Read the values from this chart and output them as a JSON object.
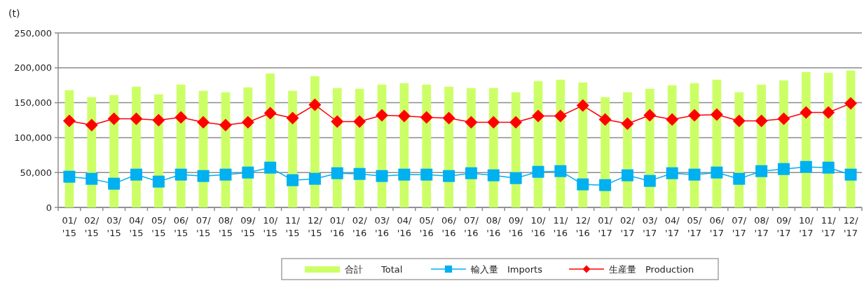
{
  "chart_data": {
    "type": "bar",
    "ylabel": "(t)",
    "ylim": [
      0,
      250000
    ],
    "yticks": [
      {
        "value": 0,
        "label": "0"
      },
      {
        "value": 50000,
        "label": "50,000"
      },
      {
        "value": 100000,
        "label": "100,000"
      },
      {
        "value": 150000,
        "label": "150,000"
      },
      {
        "value": 200000,
        "label": "200,000"
      },
      {
        "value": 250000,
        "label": "250,000"
      }
    ],
    "grid": "y",
    "legend": "bottom",
    "categories": [
      "01/\n'15",
      "02/\n'15",
      "03/\n'15",
      "04/\n'15",
      "05/\n'15",
      "06/\n'15",
      "07/\n'15",
      "08/\n'15",
      "09/\n'15",
      "10/\n'15",
      "11/\n'15",
      "12/\n'15",
      "01/\n'16",
      "02/\n'16",
      "03/\n'16",
      "04/\n'16",
      "05/\n'16",
      "06/\n'16",
      "07/\n'16",
      "08/\n'16",
      "09/\n'16",
      "10/\n'16",
      "11/\n'16",
      "12/\n'16",
      "01/\n'17",
      "02/\n'17",
      "03/\n'17",
      "04/\n'17",
      "05/\n'17",
      "06/\n'17",
      "07/\n'17",
      "08/\n'17",
      "09/\n'17",
      "10/\n'17",
      "11/\n'17",
      "12/\n'17"
    ],
    "series": [
      {
        "name": "合計　　Total",
        "color": "#ccff66",
        "values": [
          168000,
          158000,
          161000,
          173000,
          162000,
          176000,
          167000,
          165000,
          172000,
          192000,
          167000,
          188000,
          171000,
          170000,
          176000,
          178000,
          176000,
          173000,
          171000,
          171000,
          165000,
          181000,
          183000,
          179000,
          158000,
          165000,
          170000,
          175000,
          178000,
          183000,
          165000,
          176000,
          182000,
          194000,
          193000,
          196000
        ]
      },
      {
        "name": "輸入量　Imports",
        "type": "line",
        "marker": "square",
        "color": "#00b0f0",
        "values": [
          44000,
          41000,
          34000,
          47000,
          37000,
          47000,
          45000,
          47000,
          50000,
          57000,
          39000,
          41000,
          49000,
          48000,
          45000,
          47000,
          47000,
          45000,
          49000,
          46000,
          42000,
          51000,
          52000,
          33000,
          32000,
          46000,
          38000,
          49000,
          47000,
          50000,
          41000,
          52000,
          55000,
          58000,
          57000,
          47000
        ]
      },
      {
        "name": "生産量　Production",
        "type": "line",
        "marker": "diamond",
        "color": "#ff0000",
        "values": [
          124000,
          118000,
          127000,
          127000,
          125000,
          129000,
          122000,
          118000,
          122000,
          135000,
          128000,
          147000,
          123000,
          123000,
          132000,
          131000,
          129000,
          128000,
          122000,
          122000,
          122000,
          131000,
          131000,
          146000,
          126000,
          120000,
          132000,
          126000,
          132000,
          133000,
          124000,
          124000,
          127000,
          136000,
          136000,
          149000
        ]
      }
    ]
  }
}
